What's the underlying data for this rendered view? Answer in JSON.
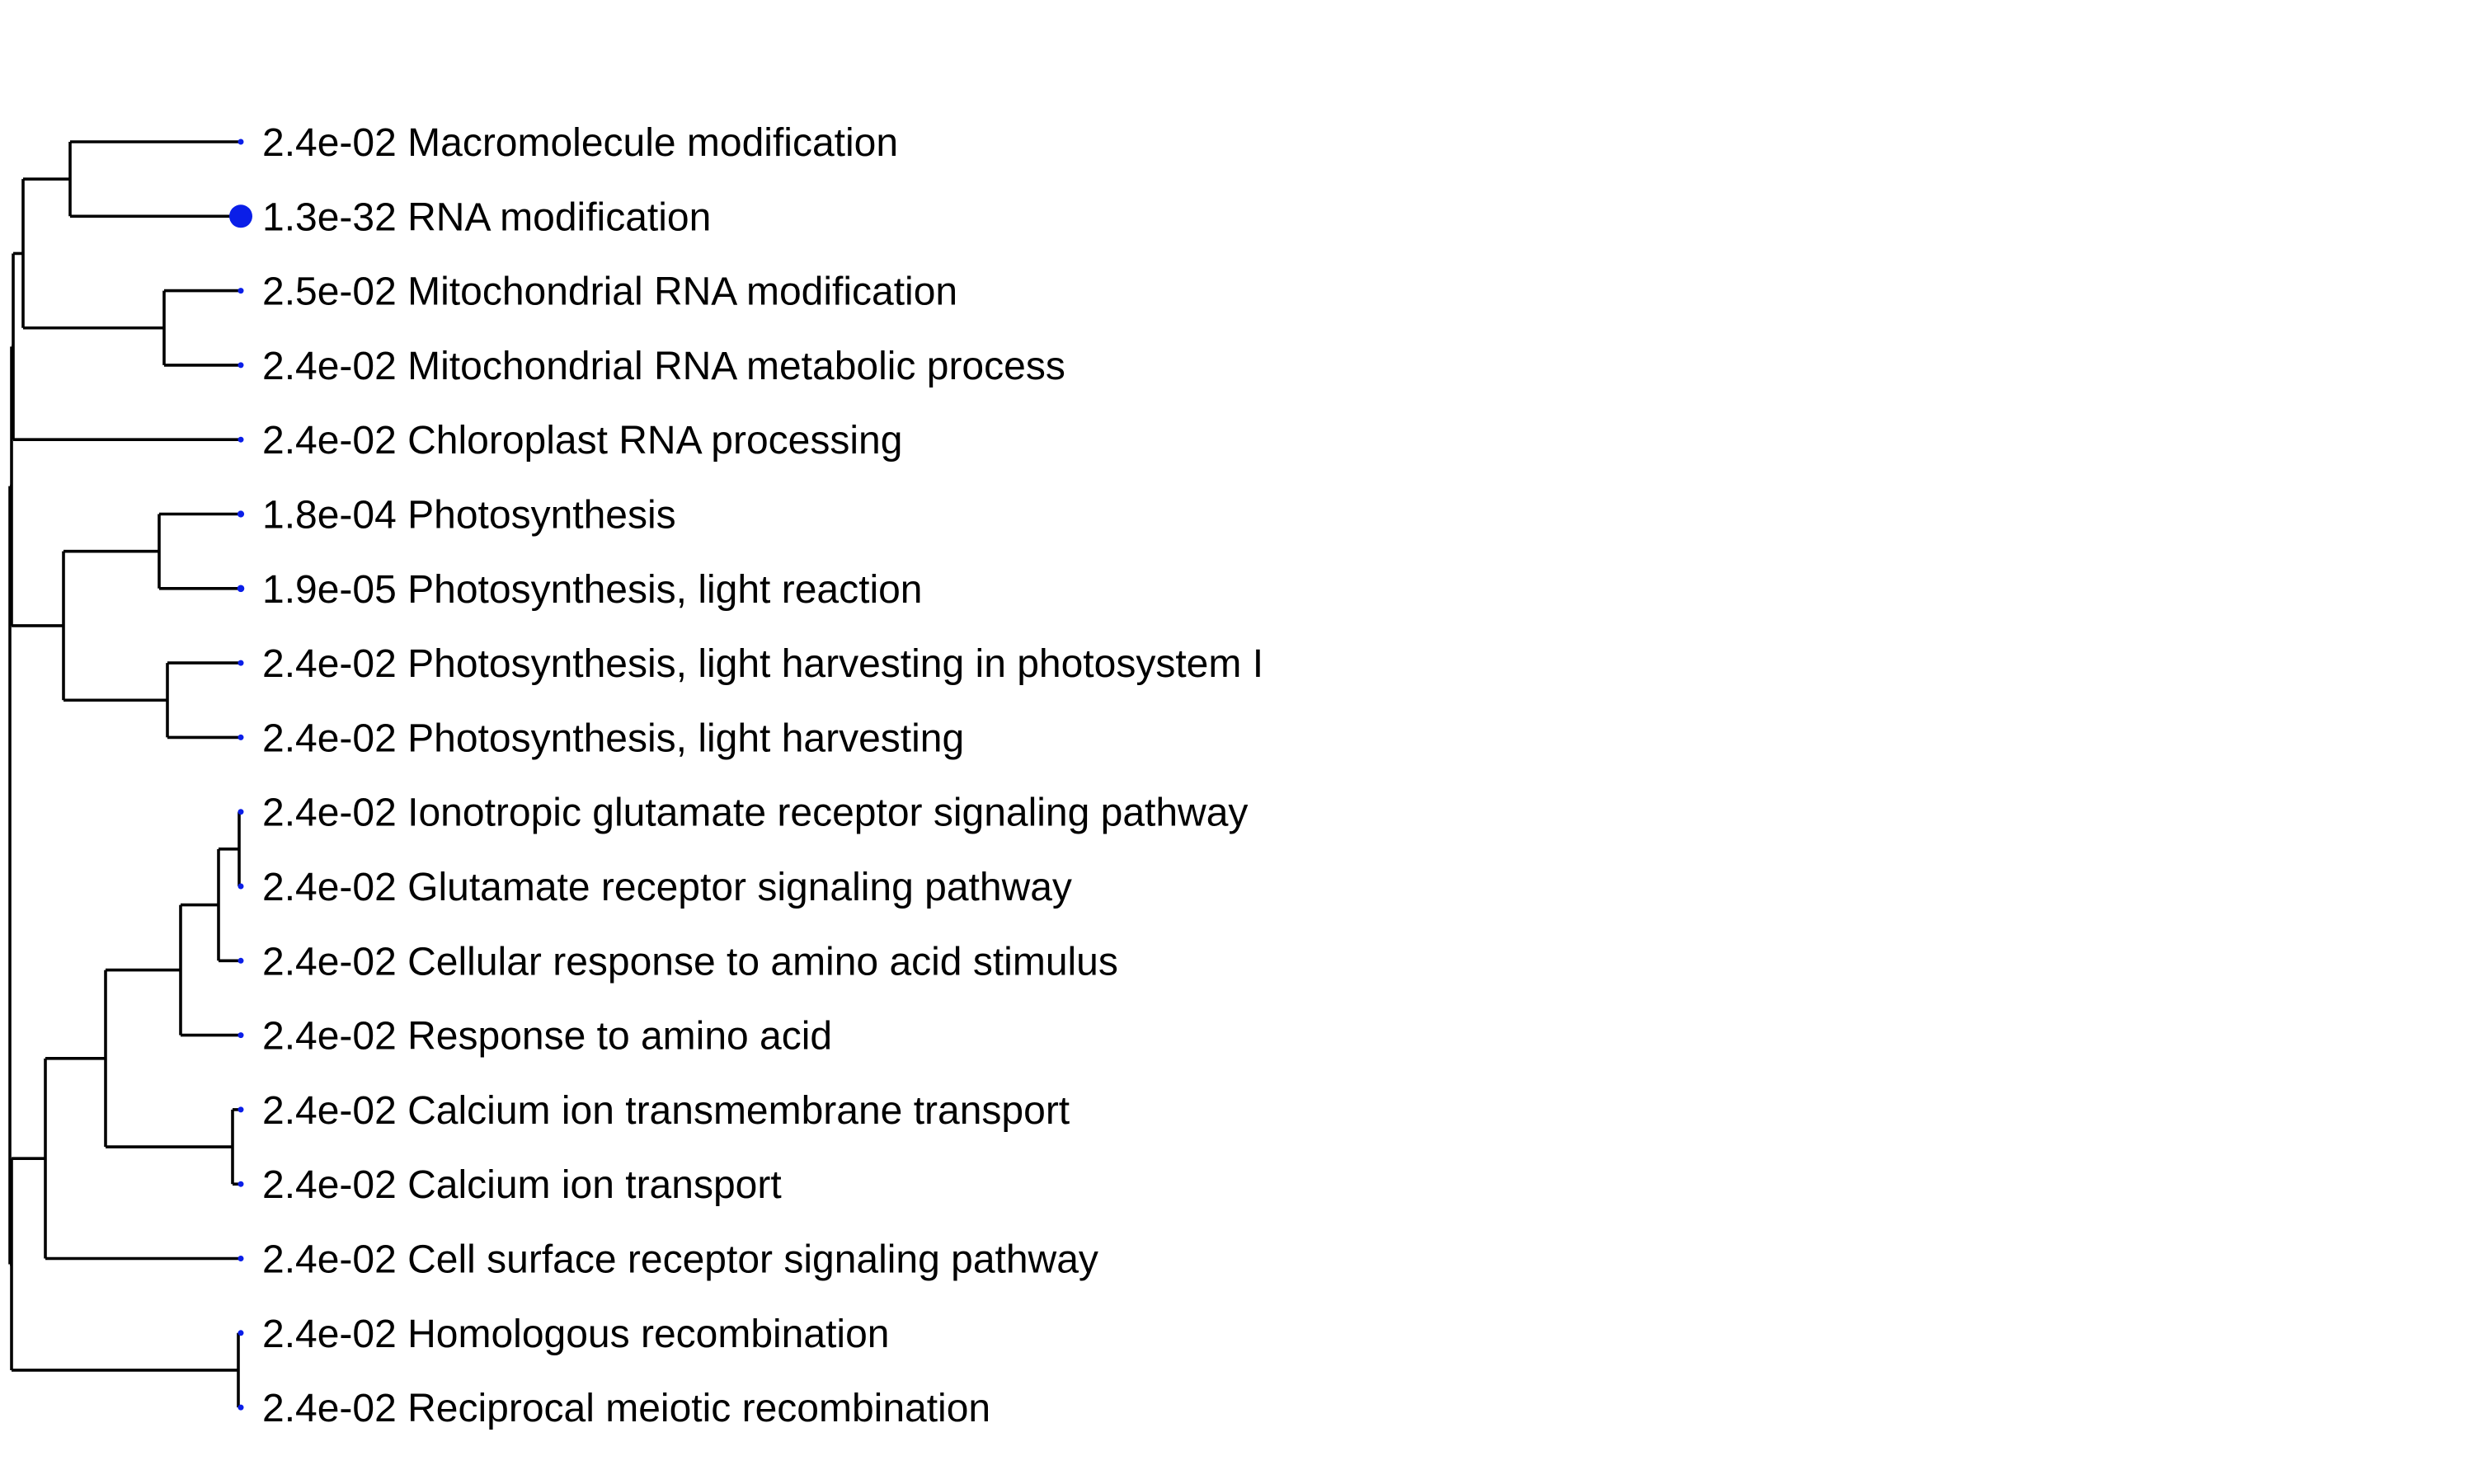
{
  "terms": [
    {
      "pvalue": "2.4e-02",
      "label": "Macromolecule modification",
      "dot": 0.05
    },
    {
      "pvalue": "1.3e-32",
      "label": "RNA modification",
      "dot": 1.0
    },
    {
      "pvalue": "2.5e-02",
      "label": "Mitochondrial RNA modification",
      "dot": 0.05
    },
    {
      "pvalue": "2.4e-02",
      "label": "Mitochondrial RNA metabolic process",
      "dot": 0.05
    },
    {
      "pvalue": "2.4e-02",
      "label": "Chloroplast RNA processing",
      "dot": 0.05
    },
    {
      "pvalue": "1.8e-04",
      "label": "Photosynthesis",
      "dot": 0.1
    },
    {
      "pvalue": "1.9e-05",
      "label": "Photosynthesis, light reaction",
      "dot": 0.12
    },
    {
      "pvalue": "2.4e-02",
      "label": "Photosynthesis, light harvesting in photosystem I",
      "dot": 0.05
    },
    {
      "pvalue": "2.4e-02",
      "label": "Photosynthesis, light harvesting",
      "dot": 0.05
    },
    {
      "pvalue": "2.4e-02",
      "label": "Ionotropic glutamate receptor signaling pathway",
      "dot": 0.05
    },
    {
      "pvalue": "2.4e-02",
      "label": "Glutamate receptor signaling pathway",
      "dot": 0.05
    },
    {
      "pvalue": "2.4e-02",
      "label": "Cellular response to amino acid stimulus",
      "dot": 0.05
    },
    {
      "pvalue": "2.4e-02",
      "label": "Response to amino acid",
      "dot": 0.05
    },
    {
      "pvalue": "2.4e-02",
      "label": "Calcium ion transmembrane transport",
      "dot": 0.05
    },
    {
      "pvalue": "2.4e-02",
      "label": "Calcium ion transport",
      "dot": 0.05
    },
    {
      "pvalue": "2.4e-02",
      "label": "Cell surface receptor signaling pathway",
      "dot": 0.05
    },
    {
      "pvalue": "2.4e-02",
      "label": "Homologous recombination",
      "dot": 0.05
    },
    {
      "pvalue": "2.4e-02",
      "label": "Reciprocal meiotic recombination",
      "dot": 0.05
    }
  ],
  "colors": {
    "branch": "#000000",
    "dot": "#0a1ee8",
    "text": "#000000"
  }
}
